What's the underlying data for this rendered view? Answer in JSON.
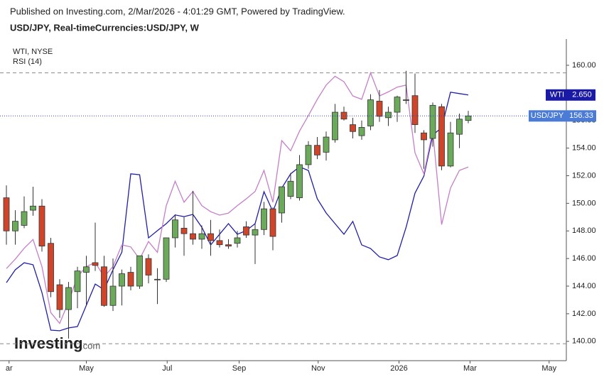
{
  "chart_data": {
    "type": "candlestick",
    "title": "Published on Investing.com, 2/Mar/2026 - 4:01:29 GMT, Powered by TradingView.",
    "subtitle": "USD/JPY, Real-timeCurrencies:USD/JPY, W",
    "logo": "Investing",
    "logo_suffix": ".com",
    "categories": [
      null,
      null,
      null,
      null,
      null,
      null,
      null,
      null,
      null,
      null,
      null,
      null,
      null,
      null,
      null,
      null,
      null,
      null,
      null,
      null,
      null,
      null,
      null,
      null,
      null,
      null,
      null,
      null,
      null,
      null,
      null,
      null,
      null,
      null,
      null,
      null,
      null,
      null,
      null,
      null,
      null,
      null,
      null,
      null,
      null,
      null,
      null,
      null,
      null,
      null,
      null,
      null,
      null
    ],
    "xticks": [
      {
        "value": 0.3,
        "label": "ar"
      },
      {
        "value": 9.0,
        "label": "May"
      },
      {
        "value": 18.1,
        "label": "Jul"
      },
      {
        "value": 26.2,
        "label": "Sep"
      },
      {
        "value": 35.1,
        "label": "Nov"
      },
      {
        "value": 44.2,
        "label": "2026"
      },
      {
        "value": 52.2,
        "label": "Mar"
      },
      {
        "value": 61.1,
        "label": "May"
      }
    ],
    "ylim": [
      138.6,
      161.9
    ],
    "yticks": [
      {
        "value": 140,
        "label": "140.00"
      },
      {
        "value": 142,
        "label": "142.00"
      },
      {
        "value": 144,
        "label": "144.00"
      },
      {
        "value": 146,
        "label": "146.00"
      },
      {
        "value": 148,
        "label": "148.00"
      },
      {
        "value": 150,
        "label": "150.00"
      },
      {
        "value": 152,
        "label": "152.00"
      },
      {
        "value": 154,
        "label": "154.00"
      },
      {
        "value": 156,
        "label": "156.00"
      },
      {
        "value": 158,
        "label": "158.00"
      },
      {
        "value": 160,
        "label": "160.00"
      }
    ],
    "series": [
      {
        "name": "USD/JPY",
        "type": "candlestick",
        "up_color": "#6aaa5a",
        "down_color": "#d0452a",
        "label_color": "#4a7bd6",
        "open": [
          150.4,
          148.0,
          148.4,
          149.5,
          149.8,
          147.1,
          144.1,
          142.3,
          143.6,
          145.0,
          145.7,
          145.4,
          142.6,
          144.0,
          145.0,
          144.0,
          146.0,
          144.5,
          144.5,
          147.5,
          148.2,
          147.8,
          147.4,
          147.8,
          147.3,
          147.0,
          147.1,
          148.3,
          147.7,
          148.1,
          149.6,
          149.3,
          150.5,
          150.4,
          152.8,
          154.2,
          153.7,
          154.6,
          156.6,
          155.7,
          154.9,
          155.6,
          157.4,
          156.2,
          156.6,
          157.5,
          157.8,
          155.1,
          154.7,
          157.0,
          152.7,
          155.0,
          156.0
        ],
        "high": [
          151.3,
          149.5,
          150.5,
          151.2,
          150.3,
          147.5,
          144.5,
          144.3,
          145.4,
          146.2,
          148.6,
          146.2,
          146.0,
          145.2,
          145.4,
          146.2,
          146.3,
          145.3,
          147.5,
          149.2,
          149.0,
          150.9,
          148.4,
          148.8,
          148.1,
          147.4,
          148.0,
          148.7,
          148.5,
          150.1,
          149.7,
          151.2,
          152.2,
          153.5,
          154.5,
          154.8,
          155.2,
          157.2,
          157.0,
          156.2,
          156.0,
          157.9,
          158.2,
          157.0,
          157.8,
          159.6,
          159.4,
          155.3,
          157.3,
          157.2,
          155.9,
          156.5,
          156.7
        ],
        "low": [
          147.0,
          147.0,
          148.2,
          149.1,
          146.5,
          143.2,
          141.7,
          140.2,
          142.4,
          142.6,
          145.1,
          142.5,
          142.2,
          142.6,
          143.7,
          143.8,
          144.2,
          142.7,
          144.3,
          146.8,
          146.2,
          147.0,
          146.7,
          146.2,
          146.8,
          146.7,
          146.8,
          147.5,
          145.6,
          147.7,
          146.6,
          148.6,
          150.3,
          150.2,
          152.5,
          153.2,
          153.1,
          154.4,
          156.0,
          154.7,
          154.6,
          155.3,
          155.9,
          155.6,
          155.9,
          157.2,
          155.1,
          152.5,
          154.1,
          152.4,
          152.6,
          154.0,
          155.8
        ],
        "close": [
          148.0,
          148.7,
          149.4,
          149.8,
          146.9,
          143.6,
          142.3,
          143.9,
          145.1,
          145.4,
          145.5,
          142.6,
          144.0,
          144.9,
          144.0,
          146.2,
          144.8,
          144.5,
          147.5,
          148.8,
          147.8,
          147.4,
          147.8,
          147.3,
          147.0,
          146.9,
          147.5,
          147.7,
          148.1,
          149.6,
          147.6,
          151.2,
          151.6,
          152.8,
          154.2,
          153.5,
          154.8,
          156.6,
          156.1,
          155.2,
          155.5,
          157.5,
          156.3,
          156.6,
          157.7,
          157.5,
          155.7,
          154.6,
          157.1,
          152.7,
          155.1,
          156.1,
          156.33
        ]
      },
      {
        "name": "WTI, NYSE",
        "short_name": "WTI",
        "type": "line",
        "color": "#1f1fa8",
        "label_color": "#1a1aa6",
        "ylim": [
          1.7,
          2.85
        ],
        "values": [
          1.979,
          2.025,
          2.05,
          2.043,
          1.944,
          1.809,
          1.807,
          1.817,
          1.822,
          1.898,
          1.974,
          1.954,
          2.025,
          2.088,
          2.368,
          2.365,
          2.139,
          2.165,
          2.19,
          2.221,
          2.215,
          2.223,
          2.177,
          2.114,
          2.152,
          2.19,
          2.152,
          2.165,
          2.19,
          2.304,
          2.233,
          2.317,
          2.368,
          2.393,
          2.38,
          2.279,
          2.228,
          2.19,
          2.152,
          2.198,
          2.114,
          2.101,
          2.071,
          2.061,
          2.076,
          2.177,
          2.299,
          2.36,
          2.507,
          2.533,
          2.66,
          2.655,
          2.65
        ],
        "value_labels": [
          null,
          null,
          null,
          null,
          null,
          null,
          null,
          null,
          null,
          null,
          null,
          null,
          null,
          null,
          null,
          null,
          null,
          null,
          null,
          null,
          null,
          null,
          null,
          null,
          null,
          null,
          null,
          null,
          null,
          null,
          null,
          null,
          null,
          null,
          null,
          null,
          null,
          null,
          null,
          null,
          null,
          null,
          null,
          null,
          null,
          null,
          null,
          null,
          null,
          null,
          null,
          null,
          "2.650"
        ]
      },
      {
        "name": "RSI (14)",
        "type": "line",
        "color": "#c57fc9",
        "ylim": [
          27.5,
          75.0
        ],
        "levels": [
          30,
          70
        ],
        "values": [
          41.1,
          42.5,
          44.1,
          45.4,
          41.4,
          34.6,
          33.0,
          36.2,
          39.9,
          41.4,
          42.0,
          39.9,
          41.4,
          44.6,
          44.3,
          42.5,
          45.1,
          43.5,
          50.4,
          54.0,
          50.9,
          52.5,
          50.4,
          49.5,
          49.0,
          49.3,
          50.4,
          51.4,
          52.5,
          55.6,
          50.9,
          60.0,
          58.5,
          61.4,
          63.7,
          66.1,
          68.2,
          69.5,
          68.7,
          66.6,
          66.1,
          70.0,
          66.6,
          67.2,
          67.9,
          68.2,
          58.2,
          55.1,
          61.4,
          47.6,
          53.0,
          55.6,
          56.1
        ]
      }
    ]
  }
}
